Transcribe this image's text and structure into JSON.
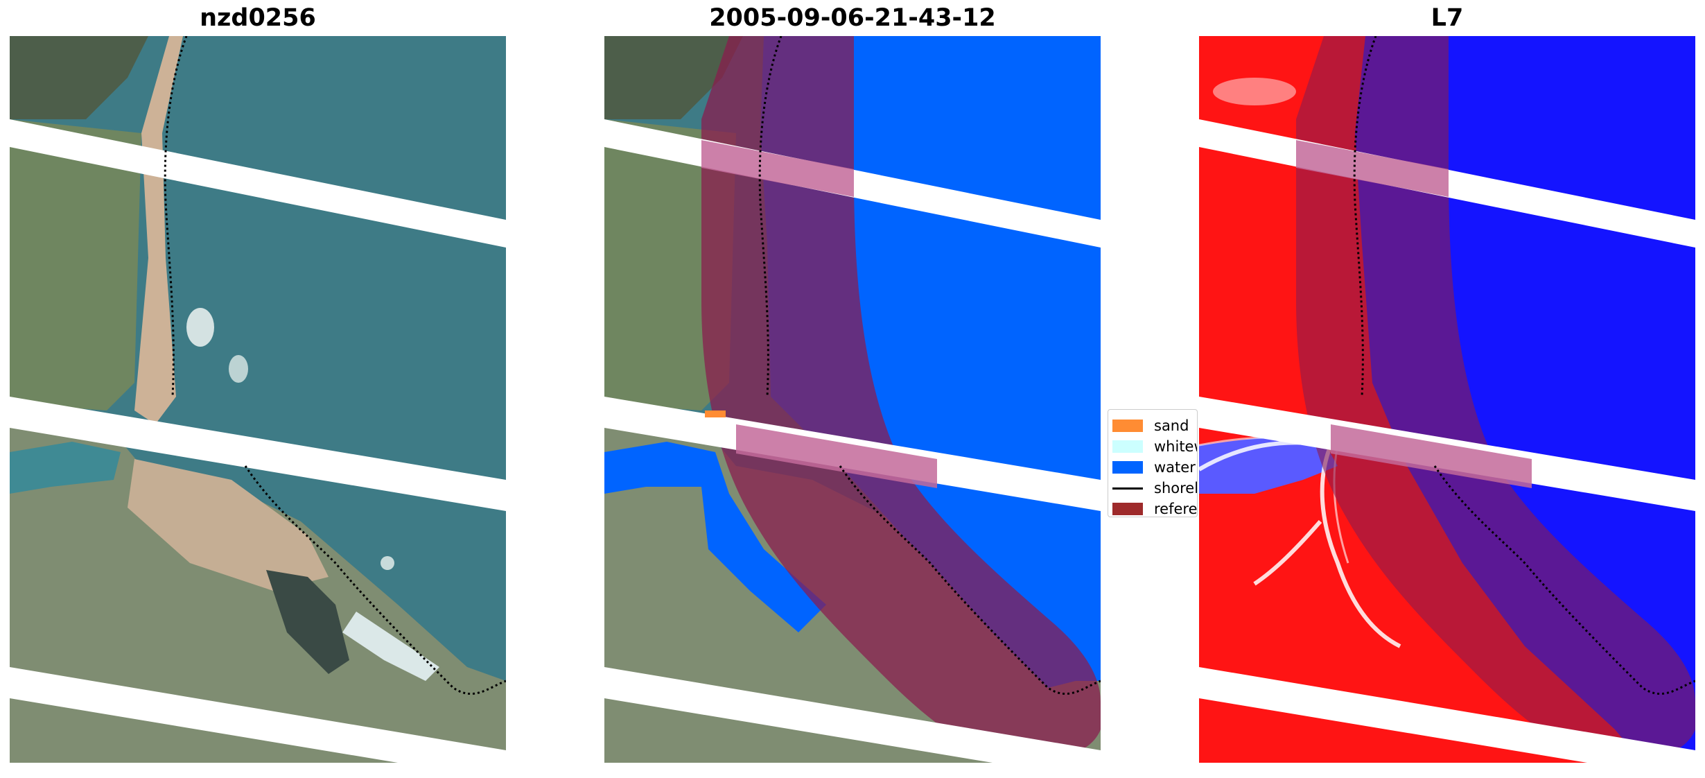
{
  "panels": [
    {
      "title": "nzd0256"
    },
    {
      "title": "2005-09-06-21-43-12"
    },
    {
      "title": "L7"
    }
  ],
  "legend": {
    "items": [
      {
        "label": "sand",
        "color": "#ff8c33"
      },
      {
        "label": "whitewater",
        "color": "#ccffff"
      },
      {
        "label": "water",
        "color": "#0064ff"
      },
      {
        "label": "shoreline",
        "color": "#000000"
      },
      {
        "label": "reference",
        "color": "#9e2a2b"
      }
    ]
  },
  "colors": {
    "ocean": "#3e7b86",
    "land": "#7c8e6c",
    "beach": "#cdb297",
    "water_class": "#0064ff",
    "buffer": "#8b1a4e",
    "mndwi_land": "#ff1414",
    "mndwi_water": "#1414ff",
    "no_data": "#ffffff"
  }
}
